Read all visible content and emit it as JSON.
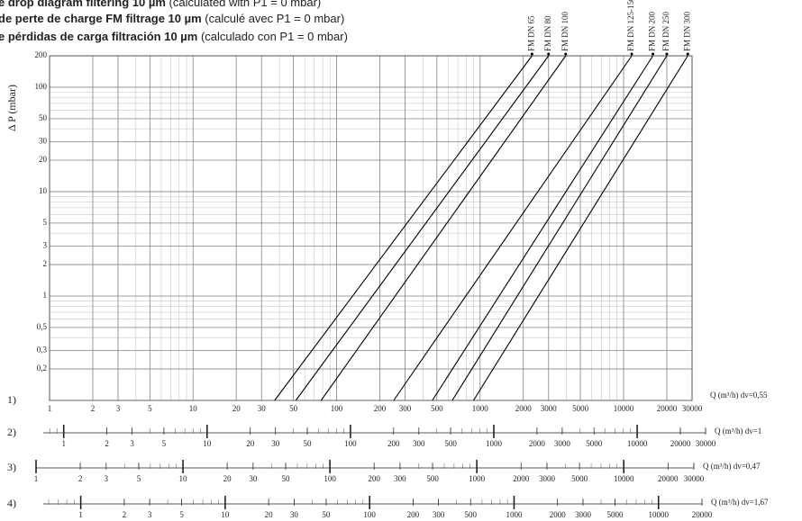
{
  "chart_data": {
    "type": "line",
    "title_lines": [
      {
        "bold": "e drop diagram filtering 10 µm",
        "normal": " (calculated with P1 = 0 mbar)"
      },
      {
        "bold": "de perte de charge FM filtrage 10 µm",
        "normal": " (calculé avec P1 = 0 mbar)"
      },
      {
        "bold": "e pérdidas de carga filtración 10 µm",
        "normal": " (calculado con P1 = 0 mbar)"
      }
    ],
    "y_label": "Δ P (mbar)",
    "log_x": true,
    "log_y": true,
    "grid": true,
    "minor_grid": true,
    "ylim": [
      0.1,
      200
    ],
    "yticks": [
      200,
      100,
      50,
      30,
      20,
      10,
      5,
      3,
      2,
      1,
      {
        "value": 0.5,
        "label": "0,5"
      },
      {
        "value": 0.3,
        "label": "0,3"
      },
      {
        "value": 0.2,
        "label": "0,2"
      }
    ],
    "x_row": "1)",
    "x_unit": "Q (m³/h)  dv=0,55",
    "xlim": [
      1,
      30000
    ],
    "xticks": [
      1,
      2,
      3,
      5,
      10,
      20,
      30,
      50,
      100,
      200,
      300,
      500,
      1000,
      2000,
      3000,
      5000,
      10000,
      20000,
      30000
    ],
    "series": [
      {
        "name": "FM DN 65",
        "color": "#000000",
        "x": [
          37,
          2300
        ],
        "values": [
          0.1,
          200
        ]
      },
      {
        "name": "FM DN 80",
        "color": "#000000",
        "x": [
          52,
          3000
        ],
        "values": [
          0.1,
          200
        ]
      },
      {
        "name": "FM DN 100",
        "color": "#000000",
        "x": [
          78,
          3950
        ],
        "values": [
          0.1,
          200
        ]
      },
      {
        "name": "FM DN 125-150",
        "color": "#000000",
        "x": [
          250,
          11400
        ],
        "values": [
          0.1,
          200
        ]
      },
      {
        "name": "FM DN 200",
        "color": "#000000",
        "x": [
          465,
          16000
        ],
        "values": [
          0.1,
          200
        ]
      },
      {
        "name": "FM DN 250",
        "color": "#000000",
        "x": [
          640,
          20000
        ],
        "values": [
          0.1,
          200
        ]
      },
      {
        "name": "FM DN 300",
        "color": "#000000",
        "x": [
          900,
          28000
        ],
        "values": [
          0.1,
          200
        ]
      }
    ],
    "extra_scales": [
      {
        "row": "2)",
        "unit": "Q (m³/h)  dv=1",
        "xlim": [
          0.72,
          30000
        ],
        "xticks": [
          1,
          2,
          3,
          5,
          10,
          20,
          30,
          50,
          100,
          200,
          300,
          500,
          1000,
          2000,
          3000,
          5000,
          10000,
          20000,
          30000
        ]
      },
      {
        "row": "3)",
        "unit": "Q (m³/h)  dv=0,47",
        "xlim": [
          1,
          30000
        ],
        "xticks": [
          1,
          2,
          3,
          5,
          10,
          20,
          30,
          50,
          100,
          200,
          300,
          500,
          1000,
          2000,
          3000,
          5000,
          10000,
          20000,
          30000
        ]
      },
      {
        "row": "4)",
        "unit": "Q (m³/h)  dv=1,67",
        "xlim": [
          0.55,
          20000
        ],
        "xticks": [
          1,
          2,
          3,
          5,
          10,
          20,
          30,
          50,
          100,
          200,
          300,
          500,
          1000,
          2000,
          3000,
          5000,
          10000,
          20000
        ]
      }
    ]
  }
}
